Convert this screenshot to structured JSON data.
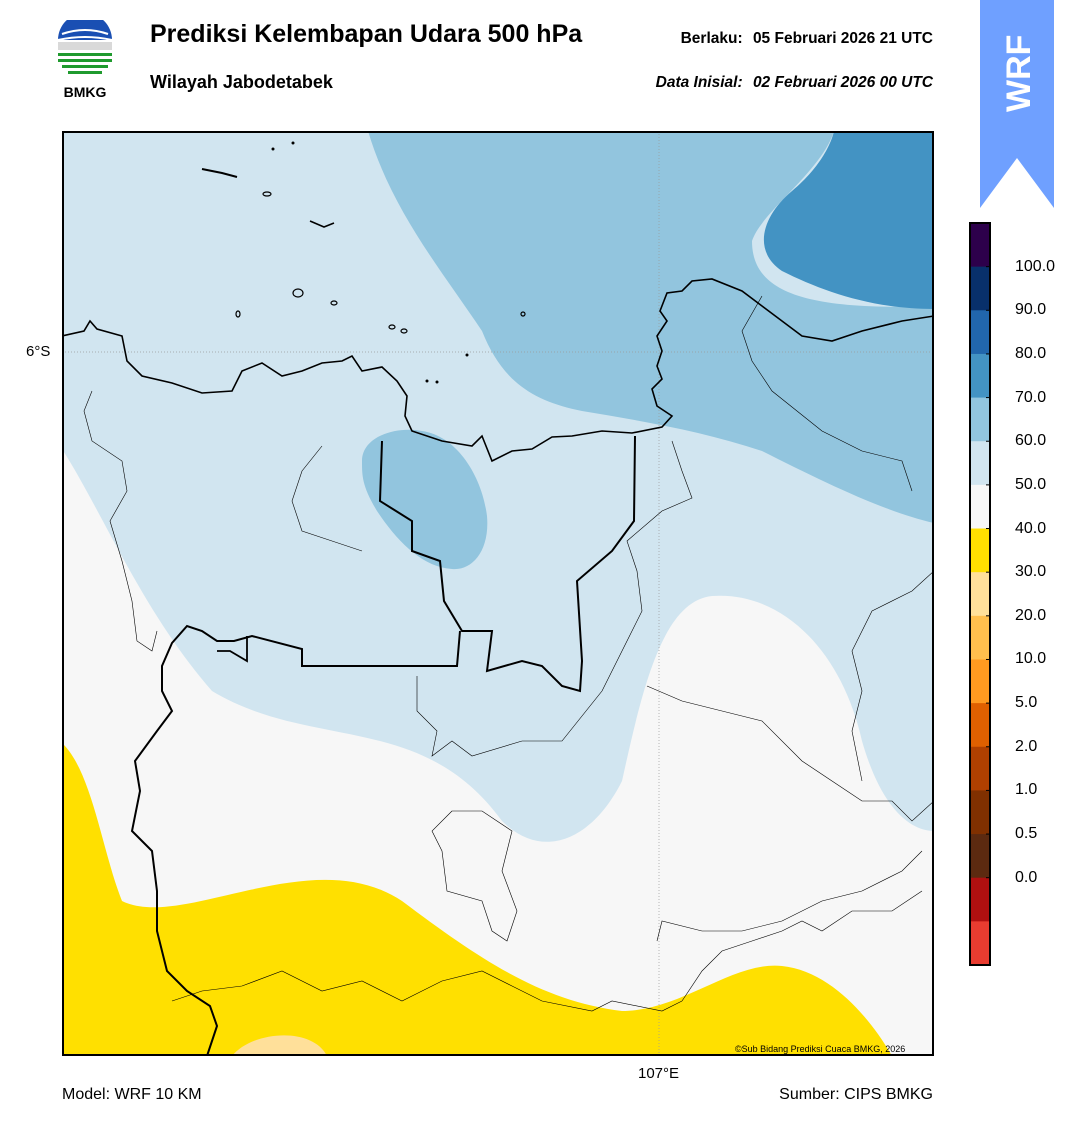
{
  "header": {
    "title": "Prediksi Kelembapan Udara 500 hPa",
    "region": "Wilayah Jabodetabek",
    "valid_label": "Berlaku:",
    "valid_time": "05 Februari 2026 21 UTC",
    "init_label": "Data Inisial:",
    "init_time": "02 Februari 2026 00 UTC"
  },
  "logo": {
    "text": "BMKG"
  },
  "badge": {
    "text": "WRF"
  },
  "map": {
    "lat_label": "6°S",
    "lon_label": "107°E",
    "copyright": "©Sub Bidang Prediksi Cuaca BMKG, 2026"
  },
  "colorbar": {
    "labels": [
      "100.0",
      "90.0",
      "80.0",
      "70.0",
      "60.0",
      "50.0",
      "40.0",
      "30.0",
      "20.0",
      "10.0",
      "5.0",
      "2.0",
      "1.0",
      "0.5",
      "0.0"
    ],
    "colors": [
      "#2d004b",
      "#08306b",
      "#2166ac",
      "#4393c3",
      "#92c5de",
      "#d1e5f0",
      "#f7f7f7",
      "#ffe000",
      "#ffe09a",
      "#ffbf4d",
      "#ff9a20",
      "#e06000",
      "#b04000",
      "#803000",
      "#5c2a10",
      "#b01010",
      "#e83c30"
    ]
  },
  "footer": {
    "model": "Model: WRF 10 KM",
    "source": "Sumber: CIPS BMKG"
  }
}
